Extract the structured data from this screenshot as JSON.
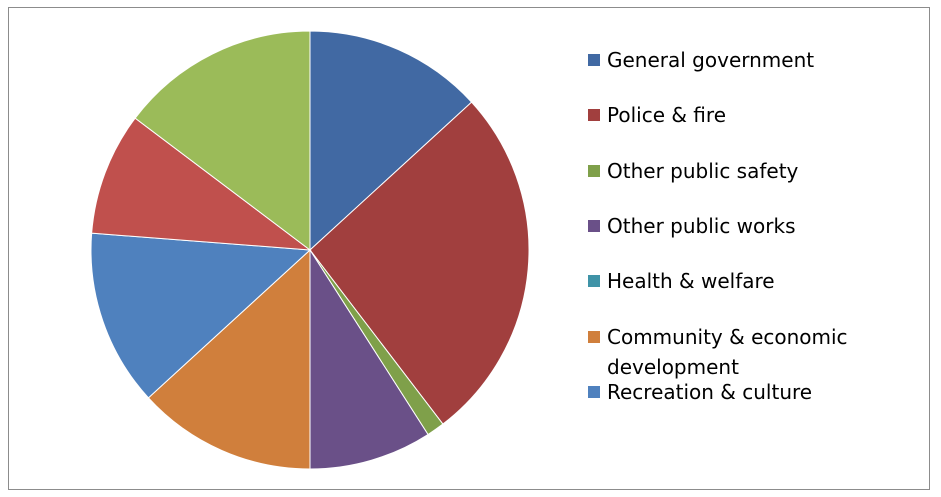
{
  "chart_data": {
    "type": "pie",
    "title": "",
    "slices": [
      {
        "label": "General government",
        "value": 14.0,
        "color": "#4169A3"
      },
      {
        "label": "Police & fire",
        "value": 28.0,
        "color": "#A13F3E"
      },
      {
        "label": "Other public safety",
        "value": 1.4,
        "color": "#7FA04A"
      },
      {
        "label": "Other public works",
        "value": 9.6,
        "color": "#6A5088"
      },
      {
        "label": "Health & welfare",
        "value": 0.0,
        "color": "#3F93A7"
      },
      {
        "label": "Community & economic development",
        "value": 14.0,
        "color": "#D07F3C"
      },
      {
        "label": "Recreation & culture",
        "value": 13.8,
        "color": "#4F81BE"
      },
      {
        "label": "",
        "value": 9.6,
        "color": "#C0504D"
      },
      {
        "label": "",
        "value": 15.6,
        "color": "#9BBB59"
      }
    ],
    "legend": {
      "placement": "right",
      "entries": [
        {
          "label": "General government",
          "color": "#4169A3"
        },
        {
          "label": "Police & fire",
          "color": "#A13F3E"
        },
        {
          "label": "Other public safety",
          "color": "#7FA04A"
        },
        {
          "label": "Other public works",
          "color": "#6A5088"
        },
        {
          "label": "Health & welfare",
          "color": "#3F93A7"
        },
        {
          "label": "Community & economic development",
          "color": "#D07F3C"
        },
        {
          "label": "Recreation & culture",
          "color": "#4F81BE"
        }
      ]
    }
  }
}
